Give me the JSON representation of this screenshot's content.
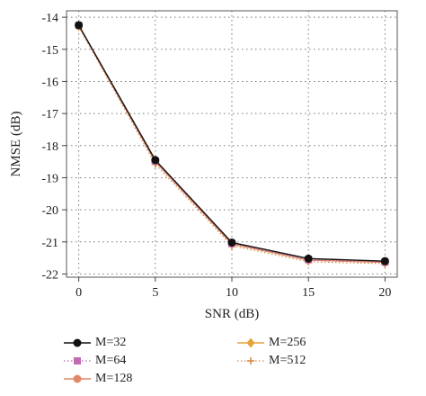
{
  "chart_data": {
    "type": "line",
    "title": "",
    "xlabel": "SNR (dB)",
    "ylabel": "NMSE (dB)",
    "x": [
      0,
      5,
      10,
      15,
      20
    ],
    "xticks": [
      "0",
      "5",
      "10",
      "15",
      "20"
    ],
    "yticks": [
      "-14",
      "-15",
      "-16",
      "-17",
      "-18",
      "-19",
      "-20",
      "-21",
      "-22"
    ],
    "xlim": [
      -0.8,
      20.8
    ],
    "ylim": [
      -22.1,
      -13.8
    ],
    "grid": true,
    "legend_position": "bottom",
    "series": [
      {
        "name": "M=32",
        "values": [
          -14.25,
          -18.45,
          -21.02,
          -21.52,
          -21.6
        ],
        "color": "#111111",
        "marker": "circle",
        "line": "solid"
      },
      {
        "name": "M=64",
        "values": [
          -14.25,
          -18.48,
          -21.05,
          -21.55,
          -21.62
        ],
        "color": "#c06bb4",
        "marker": "square",
        "line": "dotted"
      },
      {
        "name": "M=128",
        "values": [
          -14.26,
          -18.5,
          -21.06,
          -21.57,
          -21.64
        ],
        "color": "#e0876a",
        "marker": "circle",
        "line": "solid"
      },
      {
        "name": "M=256",
        "values": [
          -14.27,
          -18.5,
          -21.07,
          -21.57,
          -21.63
        ],
        "color": "#e8a23a",
        "marker": "diamond",
        "line": "solid"
      },
      {
        "name": "M=512",
        "values": [
          -14.3,
          -18.58,
          -21.12,
          -21.62,
          -21.68
        ],
        "color": "#d88a48",
        "marker": "plus",
        "line": "dotted"
      }
    ]
  }
}
